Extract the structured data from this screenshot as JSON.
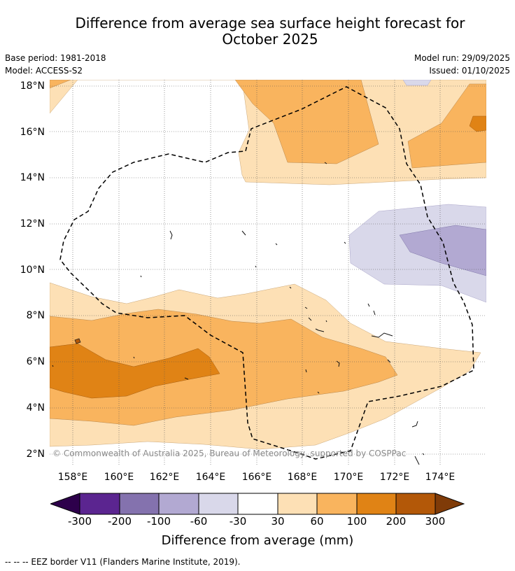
{
  "header": {
    "title_line1": "Difference from average sea surface height forecast for",
    "title_line2": "October 2025",
    "base_period": "Base period: 1981-2018",
    "model": "Model: ACCESS-S2",
    "model_run": "Model run: 29/09/2025",
    "issued": "Issued: 01/10/2025"
  },
  "map": {
    "lat_labels": [
      "18°N",
      "16°N",
      "14°N",
      "12°N",
      "10°N",
      "8°N",
      "6°N",
      "4°N",
      "2°N"
    ],
    "lon_labels": [
      "158°E",
      "160°E",
      "162°E",
      "164°E",
      "166°E",
      "168°E",
      "170°E",
      "172°E",
      "174°E"
    ],
    "copyright": "© Commonwealth of Australia 2025, Bureau of Meteorology, supported by COSPPac"
  },
  "colorbar": {
    "ticks": [
      "-300",
      "-200",
      "-100",
      "-60",
      "-30",
      "30",
      "60",
      "100",
      "200",
      "300"
    ],
    "colors": [
      "#5b2590",
      "#8472ae",
      "#b2a9d2",
      "#d9d8ea",
      "#ffffff",
      "#fde0b5",
      "#f9b45e",
      "#e08315",
      "#b35808"
    ],
    "under_color": "#2d004b",
    "over_color": "#7f3b08",
    "label": "Difference from average (mm)"
  },
  "footer": {
    "legend_note": "--  --  -- EEZ border V11 (Flanders Marine Institute, 2019)."
  }
}
